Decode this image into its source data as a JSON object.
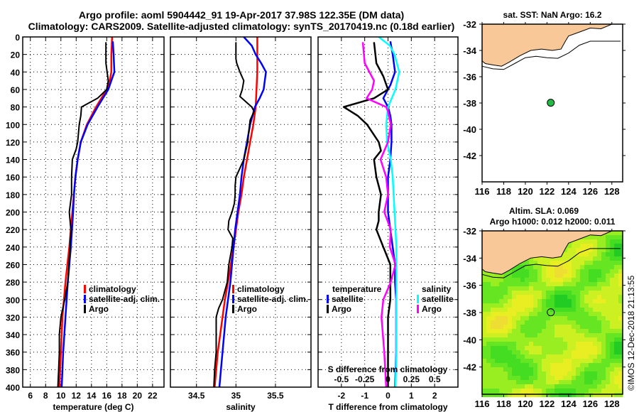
{
  "title": {
    "line1": "Argo profile: aoml 5904442_91 19-Apr-2017 37.98S 122.35E (DM data)",
    "line2": "Climatology: CARS2009. Satellite-adjusted climatology: synTS_20170419.nc (0.18d earlier)"
  },
  "colors": {
    "climatology": "#ff0000",
    "satellite_adj": "#0000ff",
    "argo": "#000000",
    "salinity_satellite": "#00ffff",
    "salinity_argo": "#ff00ff",
    "land": "#f9c898",
    "marker": "#22bb44"
  },
  "chart_data": [
    {
      "type": "line",
      "id": "temperature",
      "xlabel": "temperature (deg C)",
      "ylabel": "",
      "xlim": [
        5,
        23.5
      ],
      "ylim": [
        400,
        0
      ],
      "xticks": [
        6,
        8,
        10,
        12,
        14,
        16,
        18,
        20,
        22
      ],
      "yticks": [
        0,
        20,
        40,
        60,
        80,
        100,
        120,
        140,
        160,
        180,
        200,
        220,
        240,
        260,
        280,
        300,
        320,
        340,
        360,
        380,
        400
      ],
      "grid": true,
      "legend": {
        "placement": "middle-right",
        "entries": [
          "climatology",
          "satellite-adj. clim.",
          "Argo"
        ]
      },
      "series": [
        {
          "name": "climatology",
          "color": "#ff0000",
          "depth": [
            0,
            20,
            40,
            50,
            60,
            70,
            80,
            100,
            120,
            140,
            160,
            180,
            200,
            240,
            280,
            320,
            360,
            400
          ],
          "values": [
            16.7,
            16.6,
            16.6,
            16.4,
            16.0,
            15.3,
            14.6,
            13.4,
            12.6,
            12.2,
            11.9,
            11.7,
            11.5,
            11.1,
            10.6,
            10.2,
            10.0,
            9.8
          ]
        },
        {
          "name": "satellite-adj. clim.",
          "color": "#0000ff",
          "depth": [
            5,
            20,
            40,
            50,
            60,
            70,
            80,
            100,
            120,
            140,
            160,
            180,
            200,
            240,
            280,
            320,
            360,
            400
          ],
          "values": [
            16.8,
            16.9,
            17.0,
            16.6,
            16.2,
            15.5,
            14.8,
            13.5,
            12.6,
            12.2,
            11.9,
            11.7,
            11.6,
            11.3,
            10.9,
            10.6,
            10.3,
            10.1
          ]
        },
        {
          "name": "Argo",
          "color": "#000000",
          "depth": [
            6,
            30,
            50,
            60,
            70,
            80,
            90,
            100,
            120,
            128,
            140,
            160,
            180,
            200,
            220,
            240,
            280,
            300,
            320,
            340,
            360,
            380,
            400
          ],
          "values": [
            15.9,
            15.9,
            16.2,
            16.0,
            14.8,
            12.7,
            12.6,
            12.4,
            12.2,
            12.0,
            11.5,
            11.4,
            11.4,
            11.1,
            11.3,
            11.2,
            10.9,
            10.5,
            10.0,
            9.8,
            9.8,
            9.7,
            9.6
          ]
        }
      ]
    },
    {
      "type": "line",
      "id": "salinity",
      "xlabel": "salinity",
      "xlim": [
        34.17,
        35.95
      ],
      "ylim": [
        400,
        0
      ],
      "xticks": [
        34.5,
        35,
        35.5
      ],
      "xticklabels": [
        "34.5",
        "35",
        "35.5"
      ],
      "grid": true,
      "legend": {
        "placement": "middle-right",
        "entries": [
          "climatology",
          "satellite-adj. clim.",
          "Argo"
        ]
      },
      "series": [
        {
          "name": "climatology",
          "color": "#ff0000",
          "depth": [
            0,
            40,
            80,
            100,
            120,
            140,
            160,
            180,
            200,
            240,
            280,
            300,
            320,
            340,
            360,
            400
          ],
          "values": [
            35.27,
            35.27,
            35.25,
            35.22,
            35.18,
            35.14,
            35.1,
            35.07,
            35.03,
            34.97,
            34.9,
            34.86,
            34.83,
            34.8,
            34.77,
            34.73
          ]
        },
        {
          "name": "satellite-adj. clim.",
          "color": "#0000ff",
          "depth": [
            0,
            10,
            20,
            30,
            40,
            60,
            70,
            80,
            100,
            120,
            140,
            160,
            180,
            200,
            220,
            240,
            280,
            300,
            320,
            360,
            400
          ],
          "values": [
            35.1,
            35.2,
            35.25,
            35.32,
            35.38,
            35.35,
            35.3,
            35.24,
            35.18,
            35.14,
            35.1,
            35.07,
            35.05,
            35.02,
            34.99,
            34.97,
            34.93,
            34.9,
            34.87,
            34.83,
            34.79
          ]
        },
        {
          "name": "Argo",
          "color": "#000000",
          "depth": [
            6,
            25,
            30,
            40,
            50,
            60,
            68,
            80,
            85,
            95,
            110,
            120,
            140,
            150,
            160,
            170,
            180,
            190,
            200,
            210,
            220,
            230,
            240,
            260,
            280,
            300,
            310,
            320,
            340,
            360,
            380,
            400
          ],
          "values": [
            35.0,
            35.0,
            35.01,
            35.05,
            35.1,
            35.08,
            35.05,
            35.2,
            35.23,
            35.18,
            35.16,
            35.15,
            35.1,
            35.05,
            35.0,
            34.99,
            34.99,
            34.98,
            34.95,
            34.91,
            34.9,
            34.96,
            34.95,
            34.91,
            34.89,
            34.83,
            34.78,
            34.75,
            34.75,
            34.75,
            34.73,
            34.72
          ]
        }
      ]
    },
    {
      "type": "line",
      "id": "difference",
      "xlabel": "T difference from climatology",
      "xlim": [
        -3,
        3
      ],
      "ylim": [
        400,
        0
      ],
      "xticks": [
        -2,
        -1,
        0,
        1,
        2
      ],
      "secondary_xlabel": "S difference from climatology",
      "secondary_xlim": [
        -0.75,
        0.75
      ],
      "secondary_xticks": [
        -0.5,
        -0.25,
        0,
        0.25,
        0.5
      ],
      "secondary_xticklabels": [
        "-0.5",
        "-0.25",
        "0",
        "0.25",
        "0.5"
      ],
      "grid": true,
      "legend": {
        "placement": "middle",
        "groups": [
          {
            "title": "temperature",
            "entries": [
              "satellite",
              "Argo"
            ]
          },
          {
            "title": "salinity",
            "entries": [
              "satellite",
              "Argo"
            ]
          }
        ]
      },
      "series": [
        {
          "name": "temperature satellite",
          "color": "#0000ff",
          "axis": "T",
          "depth": [
            5,
            20,
            40,
            55,
            70,
            80,
            90,
            100,
            120,
            140,
            160,
            180,
            200,
            220,
            240,
            260,
            280,
            300,
            320,
            360,
            400
          ],
          "values": [
            0.1,
            0.2,
            0.3,
            0.1,
            -0.2,
            0.0,
            0.1,
            0.15,
            0.15,
            0.1,
            0.0,
            0.0,
            0.0,
            0.1,
            0.2,
            0.3,
            0.3,
            0.35,
            0.35,
            0.35,
            0.3
          ]
        },
        {
          "name": "temperature Argo",
          "color": "#000000",
          "axis": "T",
          "depth": [
            6,
            30,
            45,
            60,
            70,
            80,
            90,
            100,
            120,
            130,
            140,
            160,
            180,
            200,
            210,
            220,
            240,
            260,
            280,
            300,
            320,
            360,
            400
          ],
          "values": [
            -0.6,
            -0.5,
            -0.2,
            0.0,
            -0.6,
            -1.9,
            -1.3,
            -0.9,
            -0.4,
            -0.3,
            -0.6,
            -0.5,
            -0.3,
            -0.4,
            -0.4,
            -0.5,
            -0.2,
            0.1,
            0.1,
            0.1,
            0.0,
            0.0,
            0.0
          ]
        },
        {
          "name": "salinity satellite",
          "color": "#00ffff",
          "axis": "S",
          "depth": [
            0,
            10,
            20,
            40,
            60,
            80,
            100,
            120,
            140,
            160,
            180,
            200,
            240,
            280,
            320,
            360,
            400
          ],
          "values": [
            -0.1,
            0.02,
            0.07,
            0.12,
            0.08,
            0.0,
            -0.02,
            -0.01,
            0.03,
            0.05,
            0.06,
            0.07,
            0.09,
            0.09,
            0.09,
            0.09,
            0.08
          ]
        },
        {
          "name": "salinity Argo",
          "color": "#ff00ff",
          "axis": "S",
          "depth": [
            6,
            30,
            50,
            60,
            70,
            80,
            85,
            100,
            120,
            140,
            160,
            180,
            200,
            220,
            240,
            260,
            280,
            300,
            320,
            360,
            400
          ],
          "values": [
            -0.27,
            -0.25,
            -0.15,
            -0.17,
            -0.23,
            -0.02,
            0.0,
            0.03,
            0.0,
            -0.08,
            -0.02,
            0.0,
            -0.04,
            0.03,
            0.02,
            0.08,
            0.03,
            -0.05,
            -0.07,
            -0.04,
            -0.02
          ]
        }
      ]
    },
    {
      "type": "scatter",
      "id": "map-sst",
      "title": "sat. SST: NaN Argo: 16.2",
      "xlim": [
        116,
        129
      ],
      "ylim": [
        -44,
        -32
      ],
      "xticks": [
        116,
        118,
        120,
        122,
        124,
        126,
        128
      ],
      "yticks": [
        -32,
        -34,
        -36,
        -38,
        -40,
        -42
      ],
      "points": [
        {
          "lon": 122.35,
          "lat": -37.98
        }
      ]
    },
    {
      "type": "heatmap",
      "id": "map-sla",
      "title_line1": "Altim. SLA: 0.069",
      "title_line2": "Argo h1000: 0.012 h2000: 0.011",
      "xlim": [
        116,
        129
      ],
      "ylim": [
        -44,
        -32
      ],
      "xticks": [
        116,
        118,
        120,
        122,
        124,
        126,
        128
      ],
      "yticks": [
        -32,
        -34,
        -36,
        -38,
        -40,
        -42
      ],
      "points": [
        {
          "lon": 122.35,
          "lat": -37.98
        }
      ]
    }
  ],
  "credit": "©IMOS 12-Dec-2018 21:13:55",
  "legend_labels": {
    "climatology": "climatology",
    "satellite_adj": "satellite-adj. clim.",
    "argo": "Argo",
    "temperature": "temperature",
    "salinity": "salinity",
    "satellite": "satellite"
  }
}
